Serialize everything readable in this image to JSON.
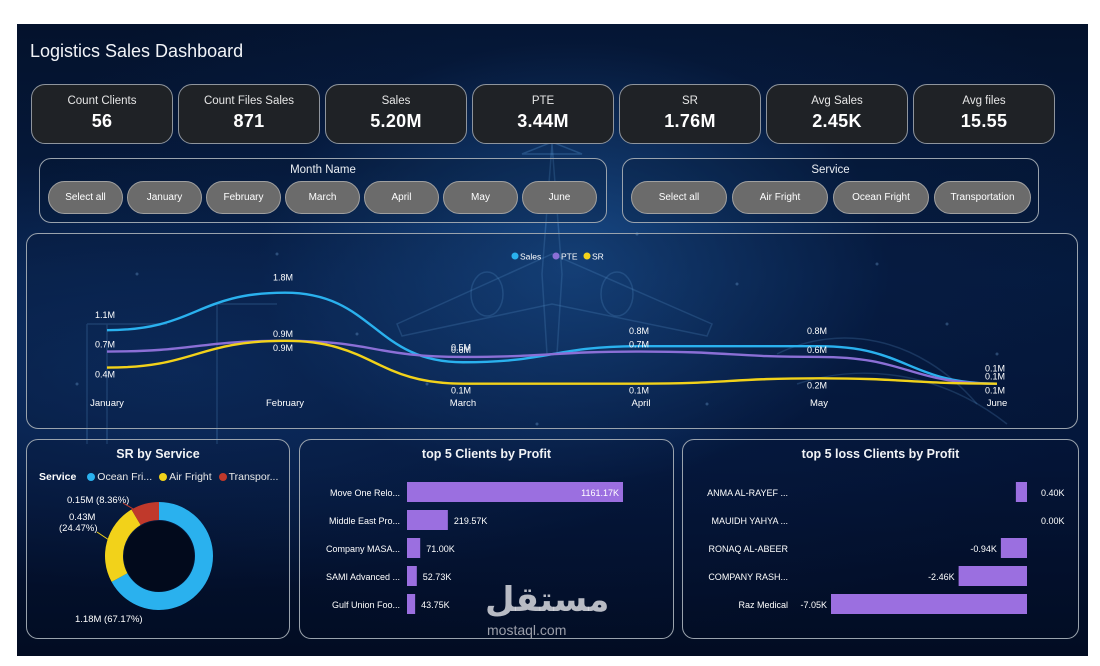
{
  "dashboard": {
    "title": "Logistics Sales Dashboard"
  },
  "kpis": [
    {
      "label": "Count Clients",
      "value": "56"
    },
    {
      "label": "Count Files Sales",
      "value": "871"
    },
    {
      "label": "Sales",
      "value": "5.20M"
    },
    {
      "label": "PTE",
      "value": "3.44M"
    },
    {
      "label": "SR",
      "value": "1.76M"
    },
    {
      "label": "Avg Sales",
      "value": "2.45K"
    },
    {
      "label": "Avg files",
      "value": "15.55"
    }
  ],
  "month_slicer": {
    "title": "Month Name",
    "options": [
      "Select all",
      "January",
      "February",
      "March",
      "April",
      "May",
      "June"
    ]
  },
  "service_slicer": {
    "title": "Service",
    "options": [
      "Select all",
      "Air Fright",
      "Ocean Fright",
      "Transportation"
    ]
  },
  "colors": {
    "sales": "#2ab1ee",
    "pte": "#8b6fd6",
    "sr": "#f2d21a",
    "transport": "#c0392b",
    "bar": "#9b6fe0"
  },
  "watermark": {
    "text": "مستقل",
    "sub": "mostaql.com"
  },
  "chart_data": [
    {
      "type": "line",
      "title": "",
      "x": [
        "January",
        "February",
        "March",
        "April",
        "May",
        "June"
      ],
      "series": [
        {
          "name": "Sales",
          "values": [
            1.1,
            1.8,
            0.5,
            0.8,
            0.8,
            0.1
          ],
          "labels": [
            "1.1M",
            "1.8M",
            "0.5M",
            "0.8M",
            "0.8M",
            "0.1M"
          ]
        },
        {
          "name": "PTE",
          "values": [
            0.7,
            0.9,
            0.6,
            0.7,
            0.6,
            0.1
          ],
          "labels": [
            "0.7M",
            "0.9M",
            "0.6M",
            "0.7M",
            "0.6M",
            "0.1M"
          ]
        },
        {
          "name": "SR",
          "values": [
            0.4,
            0.9,
            0.1,
            0.1,
            0.2,
            0.1
          ],
          "labels": [
            "0.4M",
            "0.9M",
            "0.1M",
            "0.1M",
            "0.2M",
            "0.1M"
          ]
        }
      ],
      "ylim": [
        0,
        2
      ],
      "legend": "top-center",
      "grid": false
    },
    {
      "type": "pie",
      "title": "SR by Service",
      "legend_title": "Service",
      "legend_labels": [
        "Ocean Fri...",
        "Air Fright",
        "Transpor..."
      ],
      "categories": [
        "Ocean Fright",
        "Air Fright",
        "Transportation"
      ],
      "values": [
        1.18,
        0.43,
        0.15
      ],
      "labels": [
        "1.18M (67.17%)",
        "0.43M (24.47%)",
        "0.15M (8.36%)"
      ],
      "donut": true
    },
    {
      "type": "bar",
      "title": "top 5 Clients by Profit",
      "orientation": "horizontal",
      "categories": [
        "Move One Relo...",
        "Middle East Pro...",
        "Company MASA...",
        "SAMI Advanced ...",
        "Gulf Union Foo..."
      ],
      "values": [
        1161.17,
        219.57,
        71.0,
        52.73,
        43.75
      ],
      "labels": [
        "1161.17K",
        "219.57K",
        "71.00K",
        "52.73K",
        "43.75K"
      ]
    },
    {
      "type": "bar",
      "title": "top 5 loss Clients by Profit",
      "orientation": "horizontal",
      "categories": [
        "ANMA AL-RAYEF ...",
        "MAUIDH YAHYA ...",
        "RONAQ AL-ABEER",
        "COMPANY RASH...",
        "Raz Medical"
      ],
      "values": [
        0.4,
        0.0,
        -0.94,
        -2.46,
        -7.05
      ],
      "labels": [
        "0.40K",
        "0.00K",
        "-0.94K",
        "-2.46K",
        "-7.05K"
      ]
    }
  ]
}
